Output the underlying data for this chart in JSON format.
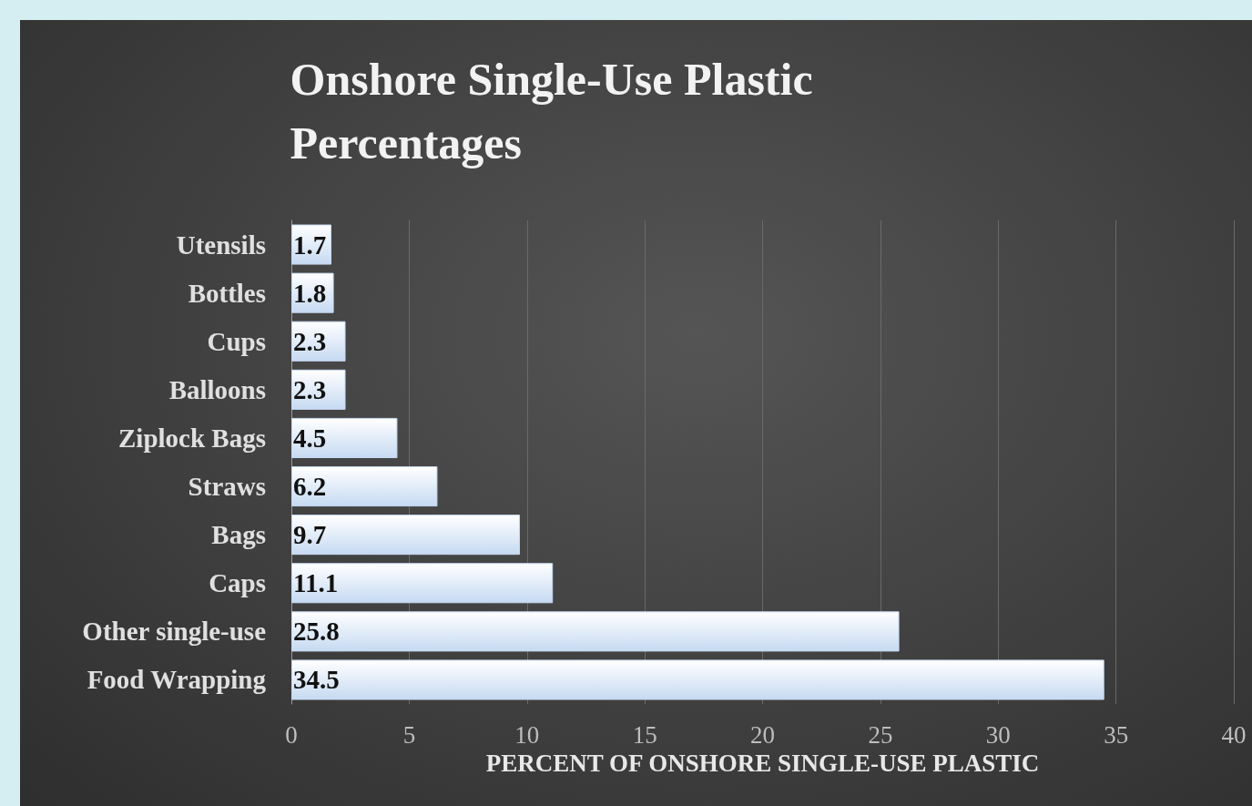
{
  "chart_data": {
    "type": "bar",
    "orientation": "horizontal",
    "title": "Onshore Single-Use Plastic Percentages",
    "xlabel": "PERCENT OF ONSHORE SINGLE-USE PLASTIC",
    "categories": [
      "Utensils",
      "Bottles",
      "Cups",
      "Balloons",
      "Ziplock Bags",
      "Straws",
      "Bags",
      "Caps",
      "Other single-use",
      "Food Wrapping"
    ],
    "values": [
      1.7,
      1.8,
      2.3,
      2.3,
      4.5,
      6.2,
      9.7,
      11.1,
      25.8,
      34.5
    ],
    "color": "#c6daf2",
    "xlim": [
      0,
      40
    ],
    "xticks": [
      0,
      5,
      10,
      15,
      20,
      25,
      30,
      35,
      40
    ],
    "grid": "x",
    "data_labels": true
  }
}
